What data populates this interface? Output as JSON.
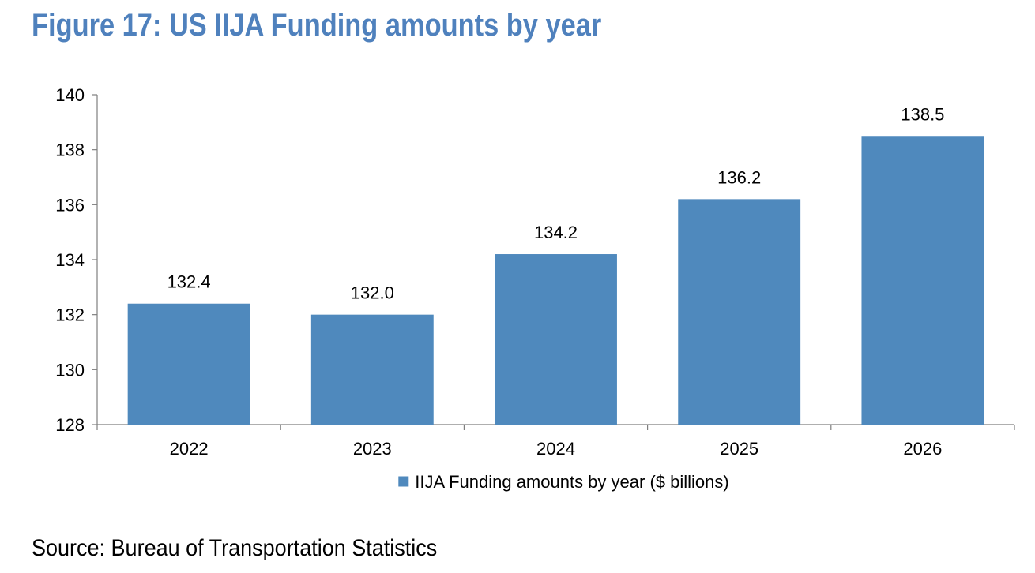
{
  "figure": {
    "title": "Figure 17: US IIJA Funding amounts by year",
    "source": "Source: Bureau of Transportation Statistics"
  },
  "colors": {
    "title": "#4f81bd",
    "bar": "#4f89bd",
    "axis": "#7f7f7f",
    "text": "#000000"
  },
  "chart_data": {
    "type": "bar",
    "title": "",
    "xlabel": "",
    "ylabel": "",
    "categories": [
      "2022",
      "2023",
      "2024",
      "2025",
      "2026"
    ],
    "series": [
      {
        "name": "IIJA Funding amounts by year ($ billions)",
        "values": [
          132.4,
          132.0,
          134.2,
          136.2,
          138.5
        ],
        "data_labels": [
          "132.4",
          "132.0",
          "134.2",
          "136.2",
          "138.5"
        ]
      }
    ],
    "ylim": [
      128,
      140
    ],
    "yticks": [
      128,
      130,
      132,
      134,
      136,
      138,
      140
    ],
    "grid": false,
    "legend": "bottom"
  }
}
